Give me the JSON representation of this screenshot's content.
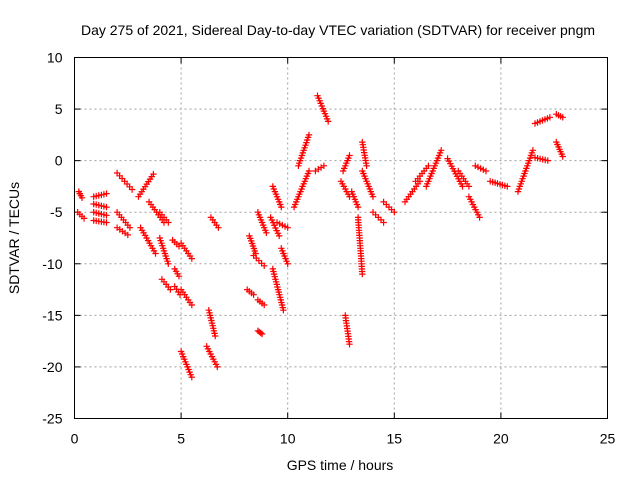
{
  "chart_data": {
    "type": "scatter",
    "title": "Day 275 of 2021, Sidereal Day-to-day VTEC variation (SDTVAR) for receiver pngm",
    "xlabel": "GPS time / hours",
    "ylabel": "SDTVAR / TECUs",
    "xlim": [
      0,
      25
    ],
    "ylim": [
      -25,
      10
    ],
    "xticks": [
      0,
      5,
      10,
      15,
      20,
      25
    ],
    "yticks": [
      -25,
      -20,
      -15,
      -10,
      -5,
      0,
      5,
      10
    ],
    "xtick_labels": [
      "0",
      "5",
      "10",
      "15",
      "20",
      "25"
    ],
    "ytick_labels": [
      "-25",
      "-20",
      "-15",
      "-10",
      "-5",
      "0",
      "5",
      "10"
    ],
    "grid": true,
    "marker": "+",
    "color": "#ff0000",
    "series": [
      {
        "name": "SDTVAR",
        "segments": [
          {
            "x": [
              0.2,
              0.35
            ],
            "y": [
              -3.0,
              -3.6
            ]
          },
          {
            "x": [
              0.15,
              0.45
            ],
            "y": [
              -5.0,
              -5.6
            ]
          },
          {
            "x": [
              0.9,
              1.5
            ],
            "y": [
              -3.5,
              -3.2
            ]
          },
          {
            "x": [
              0.9,
              1.5
            ],
            "y": [
              -4.2,
              -4.5
            ]
          },
          {
            "x": [
              0.9,
              1.5
            ],
            "y": [
              -5.0,
              -5.3
            ]
          },
          {
            "x": [
              0.9,
              1.5
            ],
            "y": [
              -5.8,
              -6.0
            ]
          },
          {
            "x": [
              2.0,
              2.7
            ],
            "y": [
              -1.2,
              -2.8
            ]
          },
          {
            "x": [
              2.0,
              2.6
            ],
            "y": [
              -5.0,
              -6.5
            ]
          },
          {
            "x": [
              2.0,
              2.5
            ],
            "y": [
              -6.5,
              -7.2
            ]
          },
          {
            "x": [
              3.0,
              3.7
            ],
            "y": [
              -3.5,
              -1.3
            ]
          },
          {
            "x": [
              3.1,
              3.8
            ],
            "y": [
              -6.5,
              -9.0
            ]
          },
          {
            "x": [
              3.5,
              4.2
            ],
            "y": [
              -4.0,
              -6.0
            ]
          },
          {
            "x": [
              4.0,
              4.4
            ],
            "y": [
              -5.0,
              -6.0
            ]
          },
          {
            "x": [
              4.0,
              4.4
            ],
            "y": [
              -7.5,
              -10.0
            ]
          },
          {
            "x": [
              4.1,
              4.5
            ],
            "y": [
              -11.5,
              -12.5
            ]
          },
          {
            "x": [
              4.6,
              4.9
            ],
            "y": [
              -7.7,
              -8.3
            ]
          },
          {
            "x": [
              4.7,
              4.9
            ],
            "y": [
              -10.5,
              -11.2
            ]
          },
          {
            "x": [
              4.7,
              4.95
            ],
            "y": [
              -12.2,
              -13.0
            ]
          },
          {
            "x": [
              5.0,
              5.5
            ],
            "y": [
              -8.0,
              -9.5
            ]
          },
          {
            "x": [
              5.0,
              5.5
            ],
            "y": [
              -12.5,
              -14.0
            ]
          },
          {
            "x": [
              5.0,
              5.5
            ],
            "y": [
              -18.5,
              -21.0
            ]
          },
          {
            "x": [
              6.3,
              6.6
            ],
            "y": [
              -14.5,
              -17.0
            ]
          },
          {
            "x": [
              6.2,
              6.7
            ],
            "y": [
              -18.0,
              -20.0
            ]
          },
          {
            "x": [
              6.4,
              6.75
            ],
            "y": [
              -5.5,
              -6.5
            ]
          },
          {
            "x": [
              8.2,
              8.5
            ],
            "y": [
              -7.3,
              -9.0
            ]
          },
          {
            "x": [
              8.4,
              8.9
            ],
            "y": [
              -9.2,
              -10.2
            ]
          },
          {
            "x": [
              8.6,
              9.0
            ],
            "y": [
              -5.0,
              -7.0
            ]
          },
          {
            "x": [
              8.1,
              8.4
            ],
            "y": [
              -12.5,
              -13.0
            ]
          },
          {
            "x": [
              8.6,
              8.9
            ],
            "y": [
              -13.5,
              -14.0
            ]
          },
          {
            "x": [
              8.6,
              8.8
            ],
            "y": [
              -16.5,
              -16.8
            ]
          },
          {
            "x": [
              9.2,
              9.6
            ],
            "y": [
              -5.5,
              -7.3
            ]
          },
          {
            "x": [
              9.3,
              9.7
            ],
            "y": [
              -2.5,
              -4.5
            ]
          },
          {
            "x": [
              9.3,
              9.8
            ],
            "y": [
              -10.5,
              -14.5
            ]
          },
          {
            "x": [
              9.5,
              10.0
            ],
            "y": [
              -6.0,
              -6.5
            ]
          },
          {
            "x": [
              9.7,
              10.0
            ],
            "y": [
              -8.5,
              -10.0
            ]
          },
          {
            "x": [
              10.3,
              11.0
            ],
            "y": [
              -4.5,
              -1.0
            ]
          },
          {
            "x": [
              10.5,
              11.0
            ],
            "y": [
              -0.5,
              2.5
            ]
          },
          {
            "x": [
              11.4,
              11.9
            ],
            "y": [
              6.3,
              3.8
            ]
          },
          {
            "x": [
              11.3,
              11.7
            ],
            "y": [
              -1.0,
              -0.5
            ]
          },
          {
            "x": [
              12.5,
              12.9
            ],
            "y": [
              -2.0,
              -3.5
            ]
          },
          {
            "x": [
              12.6,
              12.9
            ],
            "y": [
              -1.0,
              0.5
            ]
          },
          {
            "x": [
              12.7,
              12.9
            ],
            "y": [
              -15.0,
              -17.8
            ]
          },
          {
            "x": [
              13.0,
              13.3
            ],
            "y": [
              -3.0,
              -4.5
            ]
          },
          {
            "x": [
              13.3,
              13.5
            ],
            "y": [
              -5.5,
              -11.0
            ]
          },
          {
            "x": [
              13.5,
              13.7
            ],
            "y": [
              1.8,
              -0.5
            ]
          },
          {
            "x": [
              13.5,
              14.0
            ],
            "y": [
              -1.0,
              -3.5
            ]
          },
          {
            "x": [
              14.0,
              14.5
            ],
            "y": [
              -5.0,
              -6.0
            ]
          },
          {
            "x": [
              14.5,
              15.0
            ],
            "y": [
              -4.0,
              -5.0
            ]
          },
          {
            "x": [
              15.5,
              16.2
            ],
            "y": [
              -4.0,
              -2.0
            ]
          },
          {
            "x": [
              16.0,
              16.6
            ],
            "y": [
              -2.0,
              -0.5
            ]
          },
          {
            "x": [
              16.5,
              17.2
            ],
            "y": [
              -2.5,
              1.0
            ]
          },
          {
            "x": [
              17.5,
              18.2
            ],
            "y": [
              0.2,
              -2.5
            ]
          },
          {
            "x": [
              18.0,
              18.5
            ],
            "y": [
              -1.0,
              -2.5
            ]
          },
          {
            "x": [
              18.5,
              19.0
            ],
            "y": [
              -3.5,
              -5.5
            ]
          },
          {
            "x": [
              18.8,
              19.3
            ],
            "y": [
              -0.5,
              -1.0
            ]
          },
          {
            "x": [
              19.5,
              20.3
            ],
            "y": [
              -2.0,
              -2.5
            ]
          },
          {
            "x": [
              20.8,
              21.5
            ],
            "y": [
              -3.0,
              1.0
            ]
          },
          {
            "x": [
              21.6,
              22.2
            ],
            "y": [
              0.3,
              0.0
            ]
          },
          {
            "x": [
              21.6,
              22.3
            ],
            "y": [
              3.6,
              4.2
            ]
          },
          {
            "x": [
              22.6,
              22.9
            ],
            "y": [
              4.5,
              4.2
            ]
          },
          {
            "x": [
              22.6,
              22.9
            ],
            "y": [
              1.8,
              0.4
            ]
          }
        ]
      }
    ]
  }
}
